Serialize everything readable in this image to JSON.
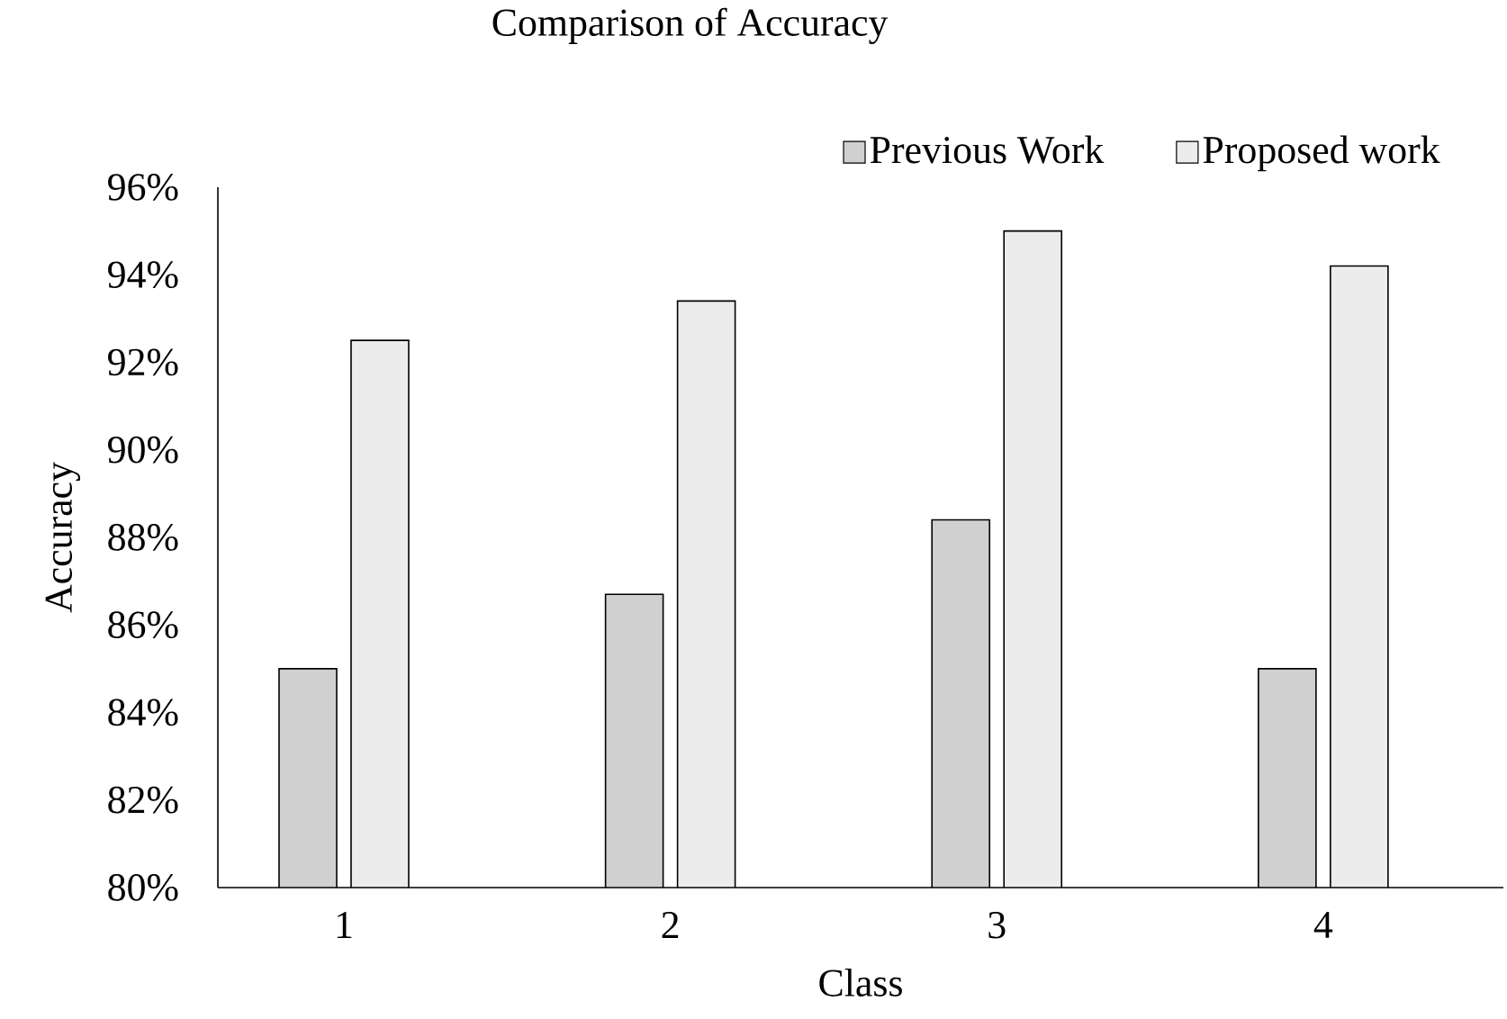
{
  "chart_data": {
    "type": "bar",
    "title": "Comparison of Accuracy",
    "xlabel": "Class",
    "ylabel": "Accuracy",
    "categories": [
      "1",
      "2",
      "3",
      "4"
    ],
    "series": [
      {
        "name": "Previous Work",
        "color": "#d0d0d0",
        "values": [
          85.0,
          86.7,
          88.4,
          85.0
        ]
      },
      {
        "name": "Proposed work",
        "color": "#ececec",
        "values": [
          92.5,
          93.4,
          95.0,
          94.2
        ]
      }
    ],
    "ylim": [
      80,
      96
    ],
    "yticks": [
      {
        "value": 80,
        "label": "80%"
      },
      {
        "value": 82,
        "label": "82%"
      },
      {
        "value": 84,
        "label": "84%"
      },
      {
        "value": 86,
        "label": "86%"
      },
      {
        "value": 88,
        "label": "88%"
      },
      {
        "value": 90,
        "label": "90%"
      },
      {
        "value": 92,
        "label": "92%"
      },
      {
        "value": 94,
        "label": "94%"
      },
      {
        "value": 96,
        "label": "96%"
      }
    ],
    "grid": false,
    "legend": "top right"
  }
}
